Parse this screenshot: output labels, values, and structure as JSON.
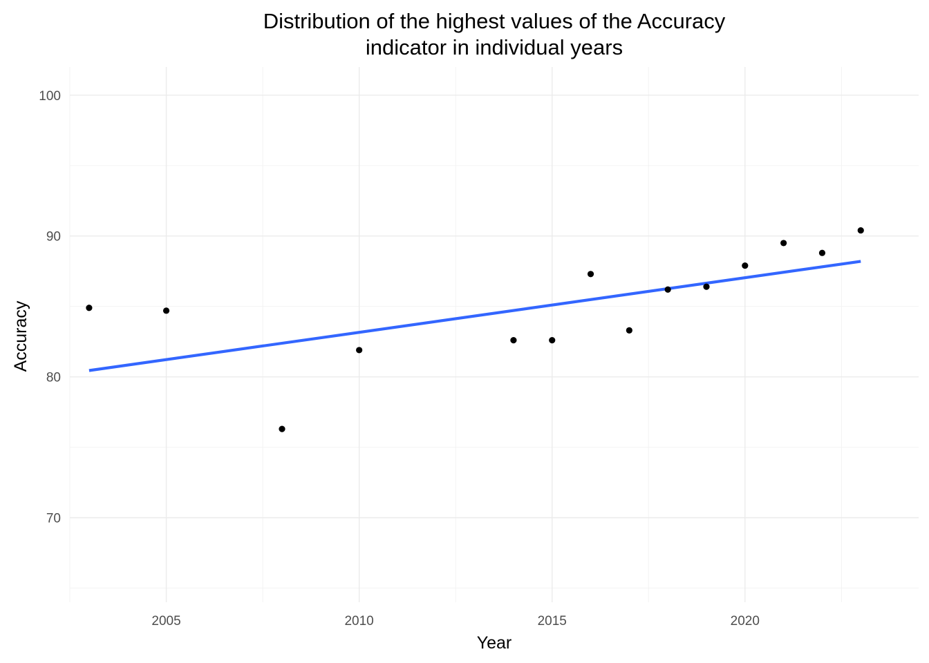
{
  "chart_data": {
    "type": "scatter",
    "title_lines": [
      "Distribution of the highest values of the Accuracy",
      "indicator in individual years"
    ],
    "xlabel": "Year",
    "ylabel": "Accuracy",
    "xlim": [
      2002.5,
      2024.5
    ],
    "ylim": [
      64,
      102
    ],
    "x_ticks": [
      2005,
      2010,
      2015,
      2020
    ],
    "x_minor_ticks": [
      2002.5,
      2007.5,
      2012.5,
      2017.5,
      2022.5
    ],
    "y_ticks": [
      70,
      80,
      90,
      100
    ],
    "y_minor_ticks": [
      65,
      75,
      85,
      95
    ],
    "grid": true,
    "legend": "none",
    "points": [
      {
        "x": 2003,
        "y": 84.9
      },
      {
        "x": 2005,
        "y": 84.7
      },
      {
        "x": 2008,
        "y": 76.3
      },
      {
        "x": 2010,
        "y": 81.9
      },
      {
        "x": 2014,
        "y": 82.6
      },
      {
        "x": 2015,
        "y": 82.6
      },
      {
        "x": 2016,
        "y": 87.3
      },
      {
        "x": 2017,
        "y": 83.3
      },
      {
        "x": 2018,
        "y": 86.2
      },
      {
        "x": 2019,
        "y": 86.4
      },
      {
        "x": 2020,
        "y": 87.9
      },
      {
        "x": 2021,
        "y": 89.5
      },
      {
        "x": 2022,
        "y": 88.8
      },
      {
        "x": 2023,
        "y": 90.4
      }
    ],
    "trend_line": {
      "method": "linear",
      "start": {
        "x": 2003,
        "y": 80.45
      },
      "end": {
        "x": 2023,
        "y": 88.2
      },
      "color": "#3366ff"
    },
    "point_color": "#000000"
  }
}
